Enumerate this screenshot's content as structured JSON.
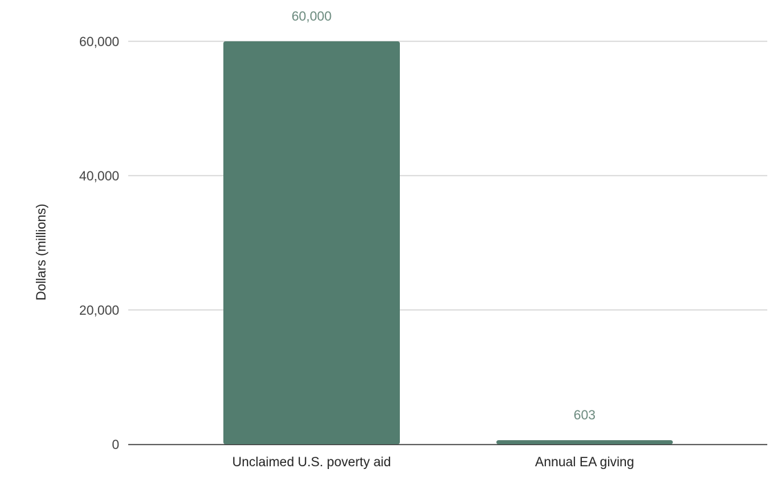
{
  "chart_data": {
    "type": "bar",
    "title": "",
    "xlabel": "",
    "ylabel": "Dollars (millions)",
    "categories": [
      "Unclaimed U.S. poverty aid",
      "Annual EA giving"
    ],
    "values": [
      60000,
      603
    ],
    "data_labels": [
      "60,000",
      "603"
    ],
    "ylim": [
      0,
      60000
    ],
    "yticks": [
      0,
      20000,
      40000,
      60000
    ],
    "ytick_labels": [
      "0",
      "20,000",
      "40,000",
      "60,000"
    ],
    "grid": true,
    "legend": "none"
  },
  "colors": {
    "bar": "#537d6f",
    "data_label": "#6b8a7e",
    "gridline": "#cccccc",
    "baseline": "#333333"
  }
}
